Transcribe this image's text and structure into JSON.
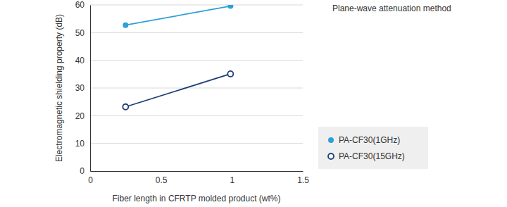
{
  "chart_data": {
    "type": "line",
    "title": "Plane-wave attenuation method",
    "x_label": "Fiber length in CFRTP molded product (wt%)",
    "y_label": "Electromagnetic shielding property (dB)",
    "x": [
      0.25,
      0.99
    ],
    "series": [
      {
        "name": "PA-CF30(1GHz)",
        "color": "#2f9fd8",
        "marker": "circle",
        "values": [
          52.7,
          59.6
        ]
      },
      {
        "name": "PA-CF30(15GHz)",
        "color": "#1d3f78",
        "marker": "circle-open",
        "values": [
          23.2,
          35.1
        ]
      }
    ],
    "xlim": [
      0,
      1.5
    ],
    "xticks": [
      0,
      0.5,
      1,
      1.5
    ],
    "ylim": [
      0,
      60
    ],
    "yticks": [
      0,
      10,
      20,
      30,
      40,
      50,
      60
    ],
    "grid": true,
    "legend": "right"
  }
}
